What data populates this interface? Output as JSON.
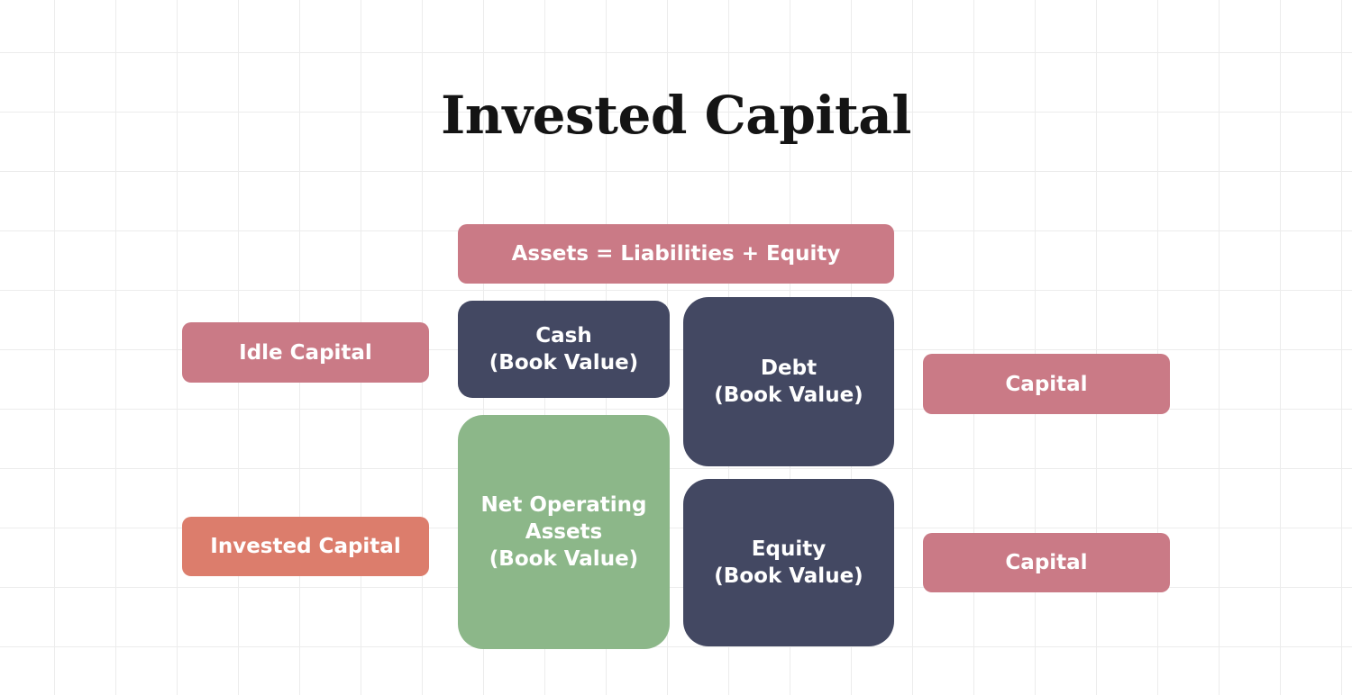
{
  "title": "Invested Capital",
  "equation": "Assets = Liabilities + Equity",
  "left_labels": {
    "idle": "Idle Capital",
    "invested": "Invested Capital"
  },
  "assets": {
    "cash": {
      "line1": "Cash",
      "line2": "(Book Value)"
    },
    "noa": {
      "line1": "Net Operating",
      "line2": "Assets",
      "line3": "(Book Value)"
    }
  },
  "liabilities_equity": {
    "debt": {
      "line1": "Debt",
      "line2": "(Book Value)"
    },
    "equity": {
      "line1": "Equity",
      "line2": "(Book Value)"
    }
  },
  "right_labels": {
    "top": "Capital",
    "bottom": "Capital"
  },
  "colors": {
    "pink": "#ca7a86",
    "navy": "#434862",
    "green": "#8cb789",
    "salmon": "#dc7d6c"
  }
}
